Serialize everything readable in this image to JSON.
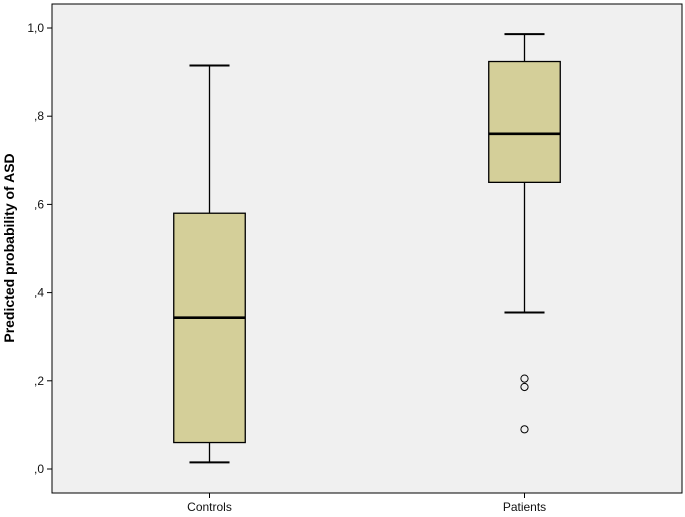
{
  "chart_data": {
    "type": "boxplot",
    "title": "",
    "xlabel": "",
    "ylabel": "Predicted probability of ASD",
    "ylim": [
      0,
      1.0
    ],
    "y_ticks": [
      0,
      0.2,
      0.4,
      0.6,
      0.8,
      1.0
    ],
    "y_tick_labels": [
      ",0",
      ",2",
      ",4",
      ",6",
      ",8",
      "1,0"
    ],
    "grid": false,
    "background_color": "#f0f0f0",
    "box_color": "#d4cf99",
    "categories": [
      "Controls",
      "Patients"
    ],
    "boxes": [
      {
        "category": "Controls",
        "whisker_low": 0.015,
        "q1": 0.06,
        "median": 0.343,
        "q3": 0.58,
        "whisker_high": 0.915,
        "outliers": []
      },
      {
        "category": "Patients",
        "whisker_low": 0.355,
        "q1": 0.65,
        "median": 0.76,
        "q3": 0.924,
        "whisker_high": 0.986,
        "outliers": [
          0.205,
          0.186,
          0.09
        ]
      }
    ]
  }
}
